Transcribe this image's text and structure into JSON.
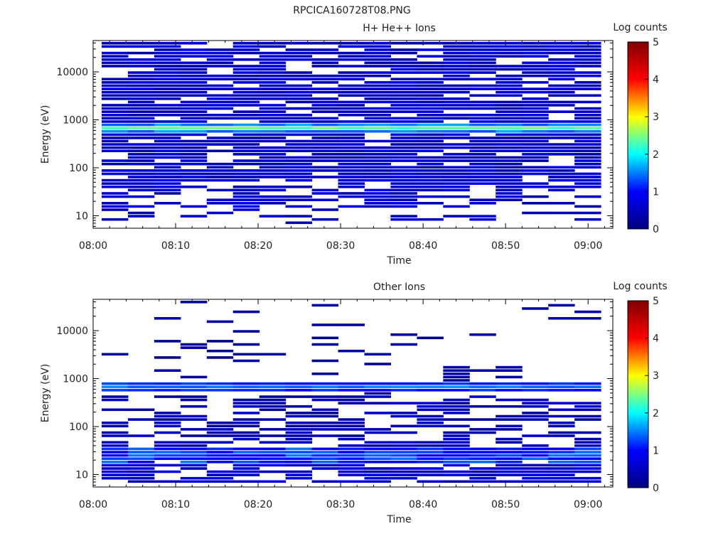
{
  "file_title": "RPCICA160728T08.PNG",
  "colorbar": {
    "label": "Log counts",
    "ticks": [
      "0",
      "1",
      "2",
      "3",
      "4",
      "5"
    ],
    "colormap": [
      "#000080",
      "#0000ff",
      "#00ffff",
      "#ffff00",
      "#ff0000",
      "#800000"
    ]
  },
  "chart_data": [
    {
      "type": "heatmap",
      "title": "H+ He++ Ions",
      "xlabel": "Time",
      "ylabel": "Energy (eV)",
      "x_ticks": [
        "08:00",
        "08:10",
        "08:20",
        "08:30",
        "08:40",
        "08:50",
        "09:00"
      ],
      "y_ticks": [
        "10",
        "100",
        "1000",
        "10000"
      ],
      "y_scale": "log",
      "x_range_minutes": [
        0,
        63
      ],
      "y_range": [
        5.5,
        45000
      ],
      "z_label": "Log counts",
      "z_range": [
        0,
        5
      ],
      "bright_band_energy_ev": 620,
      "bright_band_log_counts": 2.4,
      "seed": 11
    },
    {
      "type": "heatmap",
      "title": "Other Ions",
      "xlabel": "Time",
      "ylabel": "Energy (eV)",
      "x_ticks": [
        "08:00",
        "08:10",
        "08:20",
        "08:30",
        "08:40",
        "08:50",
        "09:00"
      ],
      "y_ticks": [
        "10",
        "100",
        "1000",
        "10000"
      ],
      "y_scale": "log",
      "x_range_minutes": [
        0,
        63
      ],
      "y_range": [
        5.5,
        45000
      ],
      "z_label": "Log counts",
      "z_range": [
        0,
        5
      ],
      "bright_band_energy_ev": 620,
      "bright_band_log_counts": 1.5,
      "seed": 29
    }
  ]
}
